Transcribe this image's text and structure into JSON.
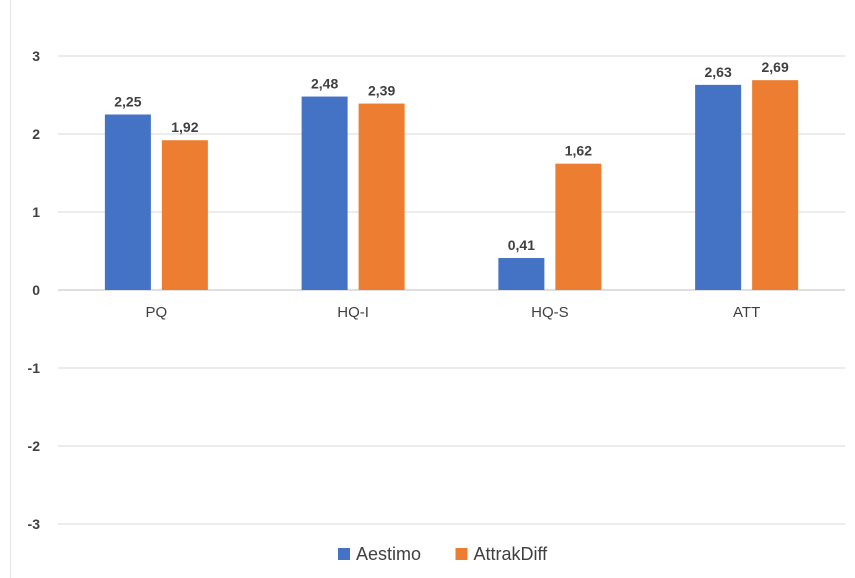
{
  "chart_data": {
    "type": "bar",
    "categories": [
      "PQ",
      "HQ-I",
      "HQ-S",
      "ATT"
    ],
    "series": [
      {
        "name": "Aestimo",
        "color": "#4472C4",
        "values": [
          2.25,
          2.48,
          0.41,
          2.63
        ],
        "labels": [
          "2,25",
          "2,48",
          "0,41",
          "2,63"
        ]
      },
      {
        "name": "AttrakDiff",
        "color": "#ED7D31",
        "values": [
          1.92,
          2.39,
          1.62,
          2.69
        ],
        "labels": [
          "1,92",
          "2,39",
          "1,62",
          "2,69"
        ]
      }
    ],
    "ylim": [
      -3,
      3
    ],
    "yticks": [
      3,
      2,
      1,
      0,
      -1,
      -2,
      -3
    ],
    "ytick_labels": [
      "3",
      "2",
      "1",
      "0",
      "-1",
      "-2",
      "-3"
    ],
    "grid": true,
    "legend": "bottom"
  }
}
